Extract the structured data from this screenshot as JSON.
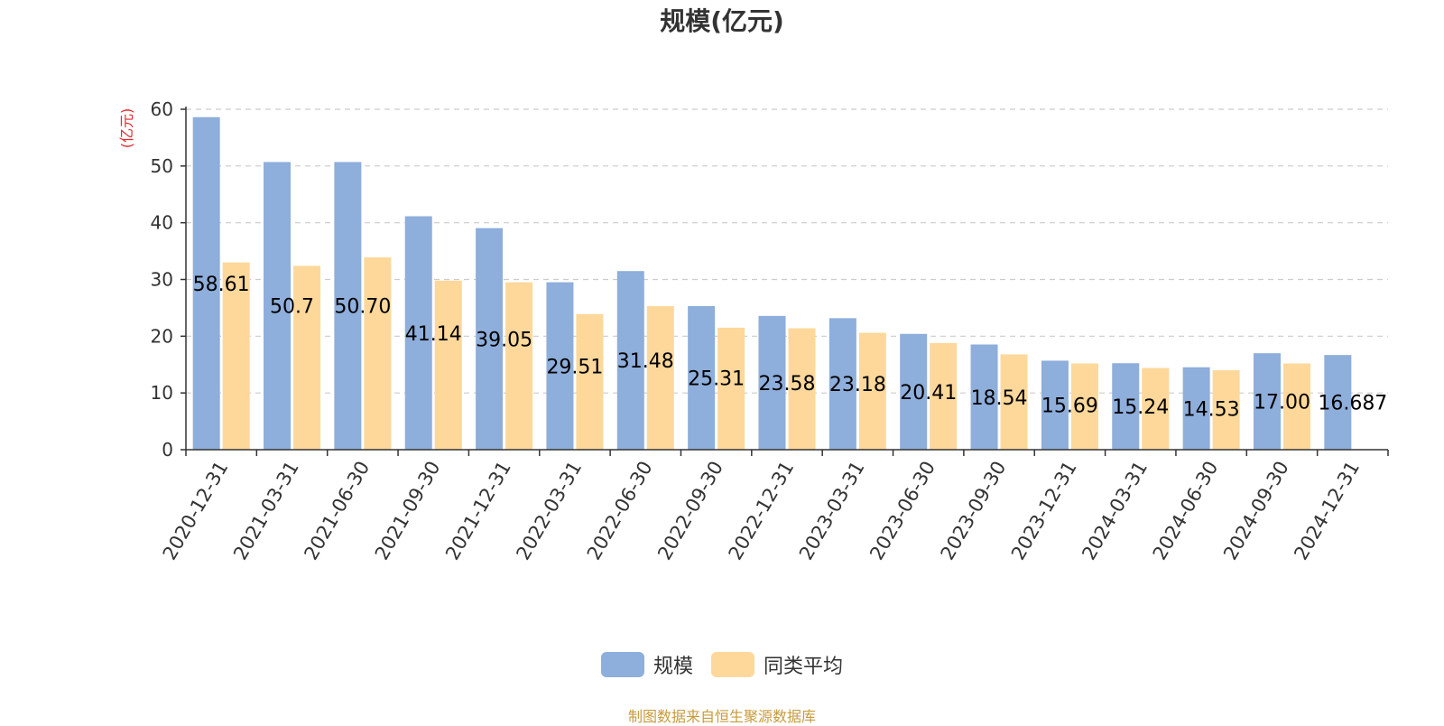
{
  "chart_data": {
    "type": "bar",
    "title": "规模(亿元)",
    "ylabel": "(亿元)",
    "xlabel": "",
    "ylim": [
      0,
      60
    ],
    "yticks": [
      0,
      10,
      20,
      30,
      40,
      50,
      60
    ],
    "grid": true,
    "legend_position": "bottom",
    "categories": [
      "2020-12-31",
      "2021-03-31",
      "2021-06-30",
      "2021-09-30",
      "2021-12-31",
      "2022-03-31",
      "2022-06-30",
      "2022-09-30",
      "2022-12-31",
      "2023-03-31",
      "2023-06-30",
      "2023-09-30",
      "2023-12-31",
      "2024-03-31",
      "2024-06-30",
      "2024-09-30",
      "2024-12-31"
    ],
    "series": [
      {
        "name": "规模",
        "color": "#8eaedb",
        "values": [
          58.61,
          50.7,
          50.7,
          41.14,
          39.05,
          29.51,
          31.48,
          25.31,
          23.58,
          23.18,
          20.41,
          18.54,
          15.69,
          15.24,
          14.53,
          17.0,
          16.687
        ],
        "labels": [
          "58.61",
          "50.7",
          "50.70",
          "41.14",
          "39.05",
          "29.51",
          "31.48",
          "25.31",
          "23.58",
          "23.18",
          "20.41",
          "18.54",
          "15.69",
          "15.24",
          "14.53",
          "17.00",
          "16.687"
        ]
      },
      {
        "name": "同类平均",
        "color": "#fdd89a",
        "values": [
          33.0,
          32.4,
          33.9,
          29.8,
          29.5,
          23.9,
          25.3,
          21.5,
          21.4,
          20.6,
          18.8,
          16.8,
          15.2,
          14.4,
          14.0,
          15.2,
          null
        ]
      }
    ]
  },
  "source_note": "制图数据来自恒生聚源数据库"
}
